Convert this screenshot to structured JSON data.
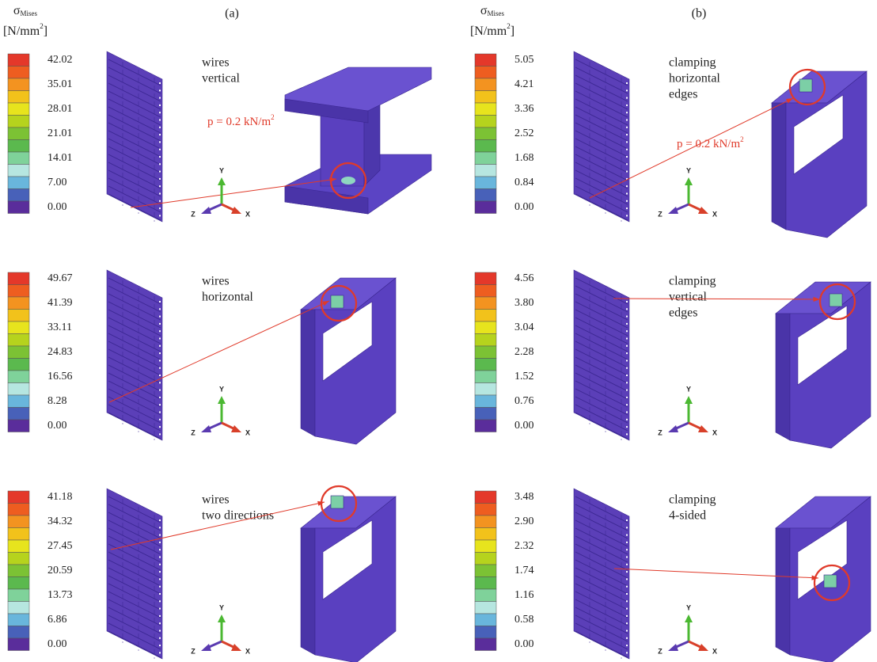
{
  "header": {
    "sigma": "σ",
    "sigma_sub": "Mises",
    "unit": "[N/mm",
    "unit_sup": "2",
    "unit_end": "]"
  },
  "columns": [
    {
      "label": "(a)",
      "panels": [
        {
          "caption": [
            "wires",
            "vertical"
          ],
          "legend": [
            "42.02",
            "35.01",
            "28.01",
            "21.01",
            "14.01",
            "7.00",
            "0.00"
          ],
          "load": {
            "text": "p = 0.2 kN/m",
            "sup": "2"
          }
        },
        {
          "caption": [
            "wires",
            "horizontal"
          ],
          "legend": [
            "49.67",
            "41.39",
            "33.11",
            "24.83",
            "16.56",
            "8.28",
            "0.00"
          ]
        },
        {
          "caption": [
            "wires",
            "two directions"
          ],
          "legend": [
            "41.18",
            "34.32",
            "27.45",
            "20.59",
            "13.73",
            "6.86",
            "0.00"
          ]
        }
      ]
    },
    {
      "label": "(b)",
      "panels": [
        {
          "caption": [
            "clamping",
            "horizontal",
            "edges"
          ],
          "legend": [
            "5.05",
            "4.21",
            "3.36",
            "2.52",
            "1.68",
            "0.84",
            "0.00"
          ],
          "load": {
            "text": "p = 0.2 kN/m",
            "sup": "2"
          }
        },
        {
          "caption": [
            "clamping",
            "vertical",
            "edges"
          ],
          "legend": [
            "4.56",
            "3.80",
            "3.04",
            "2.28",
            "1.52",
            "0.76",
            "0.00"
          ]
        },
        {
          "caption": [
            "clamping",
            "4-sided"
          ],
          "legend": [
            "3.48",
            "2.90",
            "2.32",
            "1.74",
            "1.16",
            "0.58",
            "0.00"
          ]
        }
      ]
    }
  ],
  "axes": {
    "y": "Y",
    "z": "Z",
    "x": "X"
  }
}
